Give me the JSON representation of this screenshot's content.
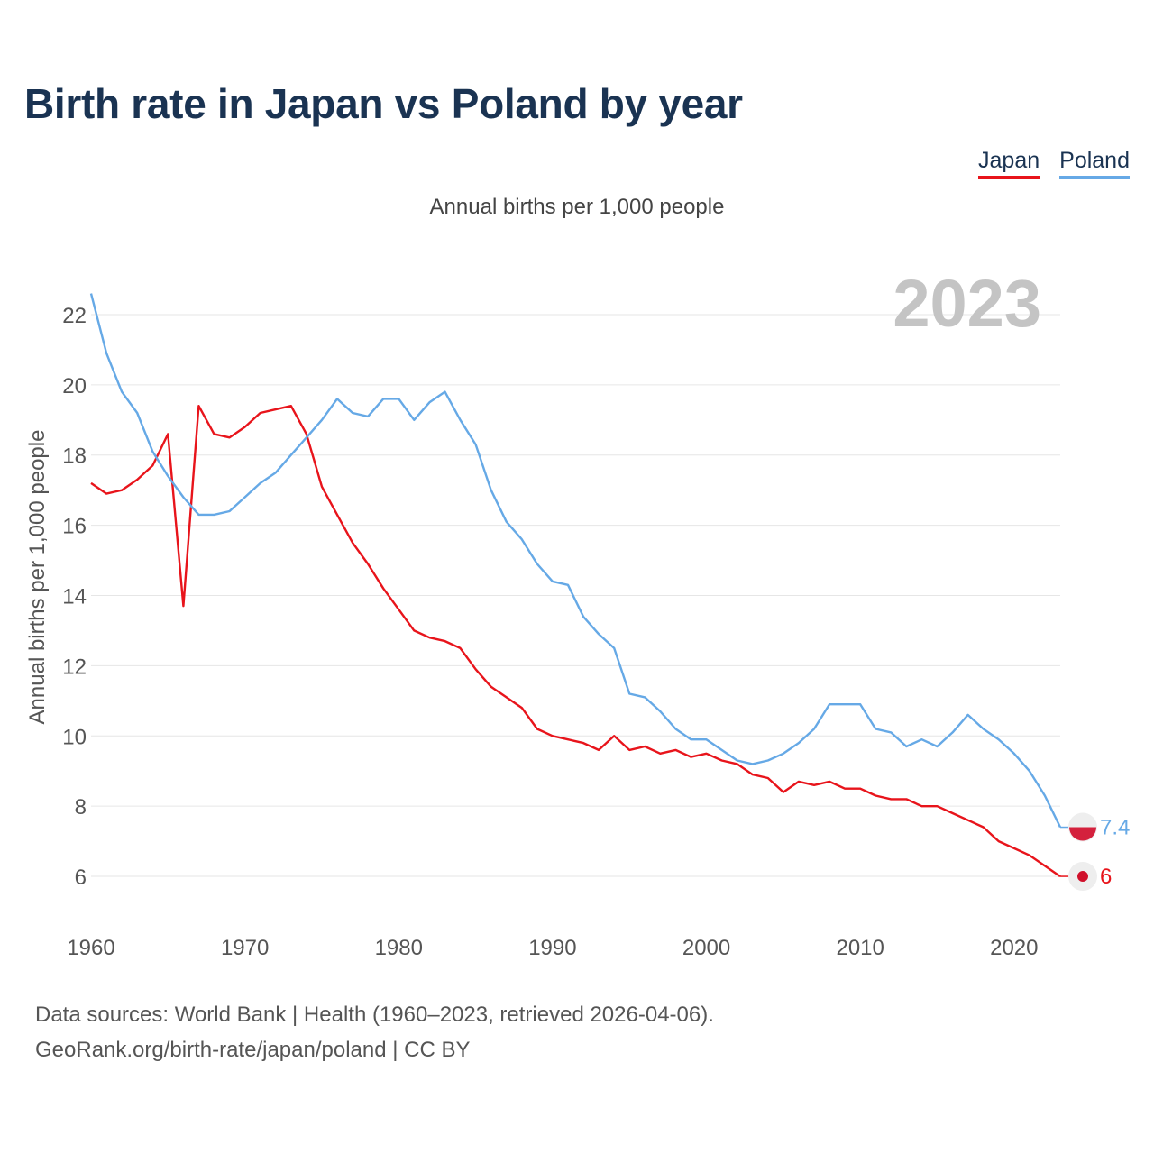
{
  "title": "Birth rate in Japan vs Poland by year",
  "subtitle": "Annual births per 1,000 people",
  "legend": [
    {
      "name": "Japan",
      "color": "#e8141b"
    },
    {
      "name": "Poland",
      "color": "#66a9e6"
    }
  ],
  "year_label": "2023",
  "footer": {
    "line1": "Data sources: World Bank | Health (1960–2023, retrieved 2026-04-06).",
    "line2": "GeoRank.org/birth-rate/japan/poland | CC BY"
  },
  "chart_data": {
    "type": "line",
    "title": "Birth rate in Japan vs Poland by year",
    "xlabel": "",
    "ylabel": "Annual births per 1,000 people",
    "xlim": [
      1960,
      2023
    ],
    "ylim": [
      5,
      23
    ],
    "xticks": [
      1960,
      1970,
      1980,
      1990,
      2000,
      2010,
      2020
    ],
    "yticks": [
      6,
      8,
      10,
      12,
      14,
      16,
      18,
      20,
      22
    ],
    "grid": true,
    "x_start": 1960,
    "series": [
      {
        "name": "Japan",
        "color": "#e8141b",
        "end_label": "6",
        "values": [
          17.2,
          16.9,
          17.0,
          17.3,
          17.7,
          18.6,
          13.7,
          19.4,
          18.6,
          18.5,
          18.8,
          19.2,
          19.3,
          19.4,
          18.6,
          17.1,
          16.3,
          15.5,
          14.9,
          14.2,
          13.6,
          13.0,
          12.8,
          12.7,
          12.5,
          11.9,
          11.4,
          11.1,
          10.8,
          10.2,
          10.0,
          9.9,
          9.8,
          9.6,
          10.0,
          9.6,
          9.7,
          9.5,
          9.6,
          9.4,
          9.5,
          9.3,
          9.2,
          8.9,
          8.8,
          8.4,
          8.7,
          8.6,
          8.7,
          8.5,
          8.5,
          8.3,
          8.2,
          8.2,
          8.0,
          8.0,
          7.8,
          7.6,
          7.4,
          7.0,
          6.8,
          6.6,
          6.3,
          6.0
        ]
      },
      {
        "name": "Poland",
        "color": "#66a9e6",
        "end_label": "7.4",
        "values": [
          22.6,
          20.9,
          19.8,
          19.2,
          18.1,
          17.4,
          16.8,
          16.3,
          16.3,
          16.4,
          16.8,
          17.2,
          17.5,
          18.0,
          18.5,
          19.0,
          19.6,
          19.2,
          19.1,
          19.6,
          19.6,
          19.0,
          19.5,
          19.8,
          19.0,
          18.3,
          17.0,
          16.1,
          15.6,
          14.9,
          14.4,
          14.3,
          13.4,
          12.9,
          12.5,
          11.2,
          11.1,
          10.7,
          10.2,
          9.9,
          9.9,
          9.6,
          9.3,
          9.2,
          9.3,
          9.5,
          9.8,
          10.2,
          10.9,
          10.9,
          10.9,
          10.2,
          10.1,
          9.7,
          9.9,
          9.7,
          10.1,
          10.6,
          10.2,
          9.9,
          9.5,
          9.0,
          8.3,
          7.4
        ]
      }
    ]
  }
}
